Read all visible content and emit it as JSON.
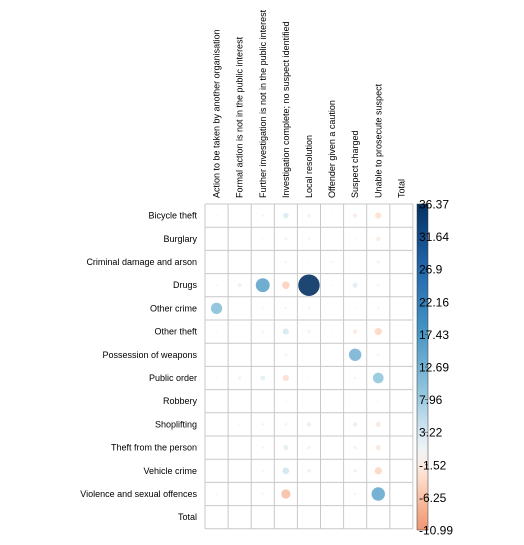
{
  "chart_data": {
    "type": "heatmap",
    "title": "",
    "xlabel": "",
    "ylabel": "",
    "columns": [
      "Action to be taken by another organisation",
      "Formal action is not in the public interest",
      "Further investigation is not in the public interest",
      "Investigation complete; no suspect identified",
      "Local resolution",
      "Offender given a caution",
      "Suspect charged",
      "Unable to prosecute suspect",
      "Total"
    ],
    "rows": [
      "Bicycle theft",
      "Burglary",
      "Criminal damage and arson",
      "Drugs",
      "Other crime",
      "Other theft",
      "Possession of weapons",
      "Public order",
      "Robbery",
      "Shoplifting",
      "Theft from the person",
      "Vehicle crime",
      "Violence and sexual offences",
      "Total"
    ],
    "values": [
      [
        0.3,
        0.1,
        0.5,
        2.5,
        -1.0,
        0.2,
        -1.5,
        -3.0,
        0
      ],
      [
        0.1,
        0.1,
        0.3,
        0.8,
        -0.5,
        0.1,
        -0.3,
        -1.5,
        0
      ],
      [
        0.1,
        0.0,
        0.2,
        0.5,
        -0.3,
        0.4,
        -0.2,
        -0.8,
        0
      ],
      [
        0.4,
        1.2,
        15.0,
        -4.5,
        36.0,
        0.3,
        2.0,
        -0.5,
        0
      ],
      [
        10.0,
        0.2,
        0.4,
        0.6,
        -0.5,
        0.2,
        0.3,
        -0.5,
        0
      ],
      [
        0.3,
        0.2,
        0.6,
        3.0,
        -1.0,
        0.2,
        -1.5,
        -4.0,
        0
      ],
      [
        0.1,
        0.0,
        0.1,
        -0.8,
        0.2,
        0.1,
        12.0,
        -0.5,
        0
      ],
      [
        0.3,
        0.8,
        1.8,
        -3.0,
        -0.3,
        0.1,
        -0.5,
        9.0,
        0
      ],
      [
        0.1,
        0.0,
        0.1,
        -0.3,
        0.1,
        0.0,
        0.2,
        -0.3,
        0
      ],
      [
        0.2,
        0.4,
        0.6,
        0.6,
        1.5,
        0.1,
        1.5,
        -2.0,
        0
      ],
      [
        0.2,
        0.2,
        0.5,
        2.0,
        -0.8,
        0.1,
        -0.8,
        -2.0,
        0
      ],
      [
        0.2,
        0.2,
        0.5,
        3.5,
        -1.2,
        0.1,
        -1.0,
        -4.0,
        0
      ],
      [
        0.4,
        0.1,
        0.4,
        -6.5,
        0.2,
        0.1,
        -0.5,
        14.0,
        0
      ],
      [
        0,
        0,
        0,
        0,
        0,
        0,
        0,
        0,
        0
      ]
    ],
    "colorbar": {
      "min": -10.99,
      "max": 36.37,
      "ticks": [
        "36.37",
        "31.64",
        "26.9",
        "22.16",
        "17.43",
        "12.69",
        "7.96",
        "3.22",
        "-1.52",
        "-6.25",
        "-10.99"
      ],
      "negative_color": "#67001F",
      "neutral_color": "#F7F7F7",
      "positive_color": "#053061"
    },
    "grid": true,
    "legend": "right"
  }
}
